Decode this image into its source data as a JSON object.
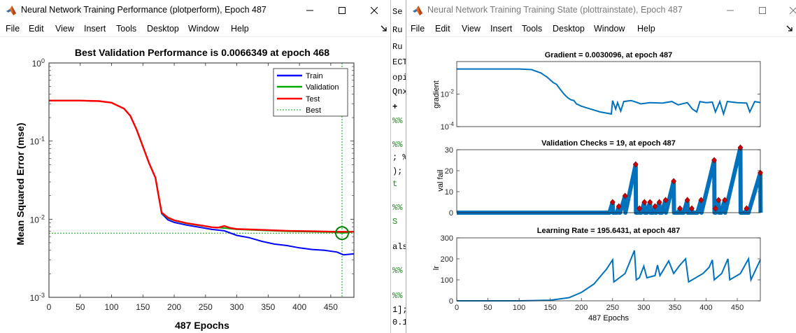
{
  "left_window": {
    "title": "Neural Network Training Performance (plotperform), Epoch 487",
    "menu": [
      "File",
      "Edit",
      "View",
      "Insert",
      "Tools",
      "Desktop",
      "Window",
      "Help"
    ]
  },
  "right_window": {
    "title": "Neural Network Training Training State (plottrainstate), Epoch 487",
    "menu": [
      "File",
      "Edit",
      "View",
      "Insert",
      "Tools",
      "Desktop",
      "Window",
      "Help"
    ]
  },
  "background_editor": {
    "snippets": [
      "Se",
      "Ru",
      "Ru",
      "ECT",
      "opia",
      "Qnx",
      "+",
      "%%",
      "%%",
      "; %",
      ");",
      "t",
      "%%",
      "S",
      "als",
      "%%",
      "%%",
      "1];",
      "0.1"
    ]
  },
  "icons": {
    "app": "matlab-logo-icon",
    "minimize": "minimize-icon",
    "maximize": "maximize-icon",
    "close": "close-icon",
    "dock": "dock-arrow-icon"
  },
  "colors": {
    "train": "#0000ff",
    "validation": "#00aa00",
    "test": "#ff0000",
    "best": "#00aa00",
    "state_line": "#0072bd",
    "marker": "#d00000"
  },
  "chart_data": [
    {
      "type": "line",
      "title": "Best Validation Performance is 0.0066349 at epoch 468",
      "xlabel": "487 Epochs",
      "ylabel": "Mean Squared Error  (mse)",
      "yscale": "log",
      "xlim": [
        0,
        487
      ],
      "ylim": [
        0.001,
        1
      ],
      "xticks": [
        0,
        50,
        100,
        150,
        200,
        250,
        300,
        350,
        400,
        450
      ],
      "yticks": [
        {
          "v": 0.001,
          "b": "10",
          "e": "-3"
        },
        {
          "v": 0.01,
          "b": "10",
          "e": "-2"
        },
        {
          "v": 0.1,
          "b": "10",
          "e": "-1"
        },
        {
          "v": 1,
          "b": "10",
          "e": "0"
        }
      ],
      "legend": {
        "position": "top-right",
        "entries": [
          "Train",
          "Validation",
          "Test",
          "Best"
        ]
      },
      "best": {
        "epoch": 468,
        "value": 0.0066349
      },
      "series": [
        {
          "name": "Train",
          "points": [
            [
              0,
              0.33
            ],
            [
              50,
              0.33
            ],
            [
              80,
              0.325
            ],
            [
              100,
              0.31
            ],
            [
              120,
              0.26
            ],
            [
              130,
              0.21
            ],
            [
              140,
              0.14
            ],
            [
              150,
              0.085
            ],
            [
              160,
              0.052
            ],
            [
              170,
              0.034
            ],
            [
              175,
              0.02
            ],
            [
              180,
              0.0118
            ],
            [
              190,
              0.0098
            ],
            [
              200,
              0.0091
            ],
            [
              220,
              0.0084
            ],
            [
              240,
              0.0079
            ],
            [
              260,
              0.0074
            ],
            [
              280,
              0.0071
            ],
            [
              300,
              0.0062
            ],
            [
              320,
              0.0058
            ],
            [
              340,
              0.0052
            ],
            [
              360,
              0.0048
            ],
            [
              380,
              0.0046
            ],
            [
              400,
              0.0043
            ],
            [
              420,
              0.0041
            ],
            [
              440,
              0.004
            ],
            [
              460,
              0.0038
            ],
            [
              470,
              0.0035
            ],
            [
              487,
              0.0036
            ]
          ]
        },
        {
          "name": "Validation",
          "points": [
            [
              0,
              0.33
            ],
            [
              50,
              0.33
            ],
            [
              80,
              0.325
            ],
            [
              100,
              0.31
            ],
            [
              120,
              0.26
            ],
            [
              130,
              0.21
            ],
            [
              140,
              0.14
            ],
            [
              150,
              0.085
            ],
            [
              160,
              0.052
            ],
            [
              170,
              0.034
            ],
            [
              175,
              0.02
            ],
            [
              180,
              0.012
            ],
            [
              190,
              0.0103
            ],
            [
              200,
              0.0096
            ],
            [
              220,
              0.0088
            ],
            [
              240,
              0.0083
            ],
            [
              260,
              0.0079
            ],
            [
              280,
              0.0077
            ],
            [
              300,
              0.0074
            ],
            [
              340,
              0.0072
            ],
            [
              380,
              0.007
            ],
            [
              420,
              0.0069
            ],
            [
              460,
              0.0068
            ],
            [
              468,
              0.0066349
            ],
            [
              487,
              0.0069
            ]
          ]
        },
        {
          "name": "Test",
          "points": [
            [
              0,
              0.33
            ],
            [
              50,
              0.33
            ],
            [
              80,
              0.325
            ],
            [
              100,
              0.31
            ],
            [
              120,
              0.26
            ],
            [
              130,
              0.21
            ],
            [
              140,
              0.14
            ],
            [
              150,
              0.085
            ],
            [
              160,
              0.052
            ],
            [
              170,
              0.034
            ],
            [
              175,
              0.02
            ],
            [
              180,
              0.0122
            ],
            [
              190,
              0.0105
            ],
            [
              200,
              0.0097
            ],
            [
              220,
              0.0089
            ],
            [
              240,
              0.0084
            ],
            [
              260,
              0.0079
            ],
            [
              270,
              0.0078
            ],
            [
              280,
              0.0082
            ],
            [
              290,
              0.0077
            ],
            [
              300,
              0.0075
            ],
            [
              340,
              0.0073
            ],
            [
              380,
              0.0071
            ],
            [
              420,
              0.007
            ],
            [
              460,
              0.0069
            ],
            [
              487,
              0.0069
            ]
          ]
        }
      ]
    },
    {
      "type": "line",
      "title": "Gradient = 0.0030096, at epoch 487",
      "xlabel": "",
      "ylabel": "gradient",
      "yscale": "log",
      "xlim": [
        0,
        487
      ],
      "ylim": [
        0.0001,
        1
      ],
      "yticks": [
        {
          "v": 0.0001,
          "b": "10",
          "e": "-4"
        },
        {
          "v": 0.01,
          "b": "10",
          "e": "-2"
        }
      ],
      "points": [
        [
          0,
          0.35
        ],
        [
          50,
          0.35
        ],
        [
          100,
          0.35
        ],
        [
          120,
          0.32
        ],
        [
          135,
          0.2
        ],
        [
          145,
          0.11
        ],
        [
          155,
          0.05
        ],
        [
          160,
          0.04
        ],
        [
          165,
          0.022
        ],
        [
          172,
          0.01
        ],
        [
          178,
          0.006
        ],
        [
          183,
          0.0045
        ],
        [
          188,
          0.004
        ],
        [
          192,
          0.0025
        ],
        [
          200,
          0.0018
        ],
        [
          215,
          0.0012
        ],
        [
          230,
          0.0008
        ],
        [
          248,
          0.0006
        ],
        [
          250,
          0.004
        ],
        [
          255,
          0.0012
        ],
        [
          258,
          0.003
        ],
        [
          263,
          0.0009
        ],
        [
          268,
          0.0035
        ],
        [
          280,
          0.004
        ],
        [
          290,
          0.003
        ],
        [
          295,
          0.0025
        ],
        [
          310,
          0.003
        ],
        [
          330,
          0.0028
        ],
        [
          345,
          0.0035
        ],
        [
          355,
          0.0022
        ],
        [
          370,
          0.003
        ],
        [
          378,
          0.0012
        ],
        [
          385,
          0.0008
        ],
        [
          390,
          0.0035
        ],
        [
          400,
          0.003
        ],
        [
          410,
          0.0032
        ],
        [
          415,
          0.0008
        ],
        [
          422,
          0.0035
        ],
        [
          428,
          0.0006
        ],
        [
          434,
          0.0035
        ],
        [
          450,
          0.003
        ],
        [
          465,
          0.0028
        ],
        [
          470,
          0.0008
        ],
        [
          478,
          0.0035
        ],
        [
          487,
          0.0030096
        ]
      ]
    },
    {
      "type": "scatter",
      "title": "Validation Checks = 19, at epoch 487",
      "xlabel": "",
      "ylabel": "val fail",
      "xlim": [
        0,
        487
      ],
      "ylim": [
        0,
        30
      ],
      "yticks": [
        0,
        10,
        20,
        30
      ],
      "cycles": [
        [
          250,
          5
        ],
        [
          260,
          3
        ],
        [
          270,
          8
        ],
        [
          287,
          23
        ],
        [
          293,
          2
        ],
        [
          301,
          5
        ],
        [
          310,
          5
        ],
        [
          318,
          3
        ],
        [
          325,
          5
        ],
        [
          335,
          6
        ],
        [
          348,
          15
        ],
        [
          358,
          2
        ],
        [
          370,
          6
        ],
        [
          377,
          2
        ],
        [
          392,
          6
        ],
        [
          413,
          25
        ],
        [
          415,
          2
        ],
        [
          420,
          6
        ],
        [
          430,
          6
        ],
        [
          455,
          31
        ],
        [
          465,
          2
        ],
        [
          487,
          19
        ]
      ]
    },
    {
      "type": "line",
      "title": "Learning Rate = 195.6431, at epoch 487",
      "xlabel": "487 Epochs",
      "ylabel": "lr",
      "xlim": [
        0,
        487
      ],
      "ylim": [
        0,
        300
      ],
      "xticks": [
        0,
        50,
        100,
        150,
        200,
        250,
        300,
        350,
        400,
        450
      ],
      "yticks": [
        0,
        100,
        200,
        300
      ],
      "points": [
        [
          0,
          0.01
        ],
        [
          100,
          0.1
        ],
        [
          150,
          3
        ],
        [
          180,
          15
        ],
        [
          200,
          40
        ],
        [
          220,
          80
        ],
        [
          240,
          150
        ],
        [
          250,
          195
        ],
        [
          252,
          90
        ],
        [
          270,
          130
        ],
        [
          285,
          240
        ],
        [
          288,
          100
        ],
        [
          293,
          110
        ],
        [
          300,
          165
        ],
        [
          305,
          110
        ],
        [
          318,
          120
        ],
        [
          322,
          170
        ],
        [
          326,
          120
        ],
        [
          330,
          140
        ],
        [
          340,
          190
        ],
        [
          348,
          130
        ],
        [
          358,
          170
        ],
        [
          367,
          200
        ],
        [
          372,
          90
        ],
        [
          395,
          130
        ],
        [
          405,
          160
        ],
        [
          410,
          195
        ],
        [
          413,
          100
        ],
        [
          425,
          130
        ],
        [
          435,
          200
        ],
        [
          438,
          100
        ],
        [
          455,
          130
        ],
        [
          468,
          200
        ],
        [
          472,
          100
        ],
        [
          487,
          195.6431
        ]
      ]
    }
  ]
}
